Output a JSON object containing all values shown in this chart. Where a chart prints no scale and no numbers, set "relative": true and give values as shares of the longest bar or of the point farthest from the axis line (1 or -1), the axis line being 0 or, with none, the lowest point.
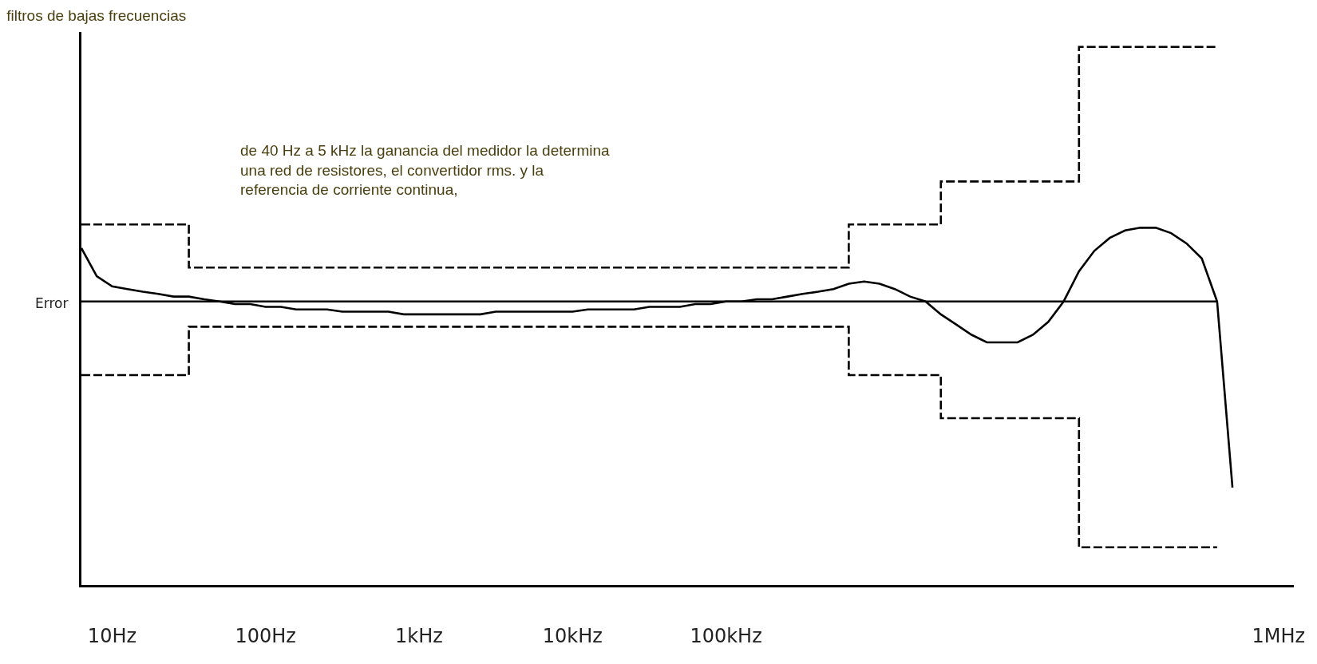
{
  "chart_data": {
    "type": "line",
    "title": "filtros de bajas frecuencias",
    "ylabel": "Error",
    "annotations": [
      "de 40 Hz a 5 kHz la ganancia del medidor la determina una red de resistores, el convertidor rms. y la referencia de corriente continua,"
    ],
    "relative": true,
    "tick_labels": "x",
    "categories": [
      null,
      null,
      "10Hz",
      null,
      null,
      null,
      null,
      null,
      null,
      null,
      null,
      null,
      "100Hz",
      null,
      null,
      null,
      null,
      null,
      null,
      null,
      null,
      null,
      "1kHz",
      null,
      null,
      null,
      null,
      null,
      null,
      null,
      null,
      null,
      "10kHz",
      null,
      null,
      null,
      null,
      null,
      null,
      null,
      null,
      null,
      "100kHz",
      null,
      null,
      null,
      null,
      null,
      null,
      null,
      null,
      null,
      null,
      null,
      null,
      null,
      null,
      null,
      null,
      null,
      null,
      null,
      null,
      null,
      null,
      null,
      null,
      null,
      null,
      null,
      null,
      null,
      null,
      null,
      null,
      null,
      null,
      null,
      "1MHz",
      null
    ],
    "series": [
      {
        "type": "step",
        "line_style": "dashed",
        "color": "#000000",
        "values": [
          0.67,
          0.67,
          0.67,
          0.67,
          0.67,
          0.67,
          0.67,
          0.59,
          0.59,
          0.59,
          0.59,
          0.59,
          0.59,
          0.59,
          0.59,
          0.59,
          0.59,
          0.59,
          0.59,
          0.59,
          0.59,
          0.59,
          0.59,
          0.59,
          0.59,
          0.59,
          0.59,
          0.59,
          0.59,
          0.59,
          0.59,
          0.59,
          0.59,
          0.59,
          0.59,
          0.59,
          0.59,
          0.59,
          0.59,
          0.59,
          0.59,
          0.59,
          0.59,
          0.59,
          0.59,
          0.59,
          0.59,
          0.59,
          0.59,
          0.59,
          0.67,
          0.67,
          0.67,
          0.67,
          0.67,
          0.67,
          0.75,
          0.75,
          0.75,
          0.75,
          0.75,
          0.75,
          0.75,
          0.75,
          0.75,
          1.0,
          1.0,
          1.0,
          1.0,
          1.0,
          1.0,
          1.0,
          1.0,
          1.0,
          1.0,
          null,
          null,
          null,
          null,
          null
        ]
      },
      {
        "type": "step",
        "line_style": "dashed",
        "color": "#000000",
        "values": [
          0.39,
          0.39,
          0.39,
          0.39,
          0.39,
          0.39,
          0.39,
          0.48,
          0.48,
          0.48,
          0.48,
          0.48,
          0.48,
          0.48,
          0.48,
          0.48,
          0.48,
          0.48,
          0.48,
          0.48,
          0.48,
          0.48,
          0.48,
          0.48,
          0.48,
          0.48,
          0.48,
          0.48,
          0.48,
          0.48,
          0.48,
          0.48,
          0.48,
          0.48,
          0.48,
          0.48,
          0.48,
          0.48,
          0.48,
          0.48,
          0.48,
          0.48,
          0.48,
          0.48,
          0.48,
          0.48,
          0.48,
          0.48,
          0.48,
          0.48,
          0.39,
          0.39,
          0.39,
          0.39,
          0.39,
          0.39,
          0.31,
          0.31,
          0.31,
          0.31,
          0.31,
          0.31,
          0.31,
          0.31,
          0.31,
          0.07,
          0.07,
          0.07,
          0.07,
          0.07,
          0.07,
          0.07,
          0.07,
          0.07,
          0.07,
          null,
          null,
          null,
          null,
          null
        ]
      },
      {
        "line_style": "solid",
        "color": "#000000",
        "values": [
          0.527,
          0.527,
          0.527,
          0.527,
          0.527,
          0.527,
          0.527,
          0.527,
          0.527,
          0.527,
          0.527,
          0.527,
          0.527,
          0.527,
          0.527,
          0.527,
          0.527,
          0.527,
          0.527,
          0.527,
          0.527,
          0.527,
          0.527,
          0.527,
          0.527,
          0.527,
          0.527,
          0.527,
          0.527,
          0.527,
          0.527,
          0.527,
          0.527,
          0.527,
          0.527,
          0.527,
          0.527,
          0.527,
          0.527,
          0.527,
          0.527,
          0.527,
          0.527,
          0.527,
          0.527,
          0.527,
          0.527,
          0.527,
          0.527,
          0.527,
          0.527,
          0.527,
          0.527,
          0.527,
          0.527,
          0.527,
          0.527,
          0.527,
          0.527,
          0.527,
          0.527,
          0.527,
          0.527,
          0.527,
          0.527,
          0.527,
          0.527,
          0.527,
          0.527,
          0.527,
          0.527,
          0.527,
          0.527,
          0.527,
          0.527,
          null,
          null,
          null,
          null,
          null
        ]
      },
      {
        "line_style": "solid",
        "color": "#000000",
        "values": [
          0.626,
          0.574,
          0.555,
          0.55,
          0.545,
          0.541,
          0.536,
          0.536,
          0.531,
          0.527,
          0.522,
          0.522,
          0.517,
          0.517,
          0.512,
          0.512,
          0.512,
          0.508,
          0.508,
          0.508,
          0.508,
          0.503,
          0.503,
          0.503,
          0.503,
          0.503,
          0.503,
          0.508,
          0.508,
          0.508,
          0.508,
          0.508,
          0.508,
          0.512,
          0.512,
          0.512,
          0.512,
          0.517,
          0.517,
          0.517,
          0.522,
          0.522,
          0.527,
          0.527,
          0.531,
          0.531,
          0.536,
          0.541,
          0.545,
          0.55,
          0.56,
          0.564,
          0.56,
          0.55,
          0.536,
          0.527,
          0.503,
          0.484,
          0.465,
          0.451,
          0.451,
          0.451,
          0.465,
          0.489,
          0.527,
          0.583,
          0.621,
          0.645,
          0.659,
          0.664,
          0.664,
          0.654,
          0.635,
          0.607,
          0.527,
          0.181,
          null,
          null,
          null,
          null
        ]
      }
    ]
  }
}
